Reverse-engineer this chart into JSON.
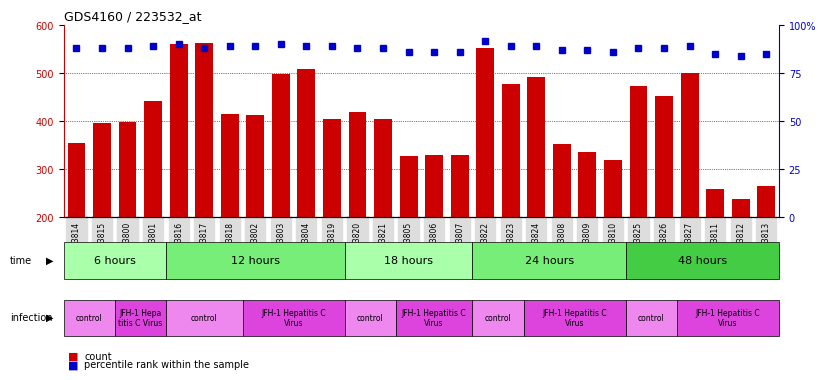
{
  "title": "GDS4160 / 223532_at",
  "samples": [
    "GSM523814",
    "GSM523815",
    "GSM523800",
    "GSM523801",
    "GSM523816",
    "GSM523817",
    "GSM523818",
    "GSM523802",
    "GSM523803",
    "GSM523804",
    "GSM523819",
    "GSM523820",
    "GSM523821",
    "GSM523805",
    "GSM523806",
    "GSM523807",
    "GSM523822",
    "GSM523823",
    "GSM523824",
    "GSM523808",
    "GSM523809",
    "GSM523810",
    "GSM523825",
    "GSM523826",
    "GSM523827",
    "GSM523811",
    "GSM523812",
    "GSM523813"
  ],
  "counts": [
    355,
    397,
    399,
    443,
    560,
    562,
    415,
    413,
    499,
    509,
    405,
    420,
    404,
    328,
    329,
    330,
    553,
    477,
    493,
    352,
    335,
    320,
    473,
    453,
    500,
    258,
    238,
    265
  ],
  "percentile_ranks": [
    88,
    88,
    88,
    89,
    90,
    88,
    89,
    89,
    90,
    89,
    89,
    88,
    88,
    86,
    86,
    86,
    92,
    89,
    89,
    87,
    87,
    86,
    88,
    88,
    89,
    85,
    84,
    85
  ],
  "bar_color": "#cc0000",
  "dot_color": "#0000cc",
  "ylim_left": [
    200,
    600
  ],
  "ylim_right": [
    0,
    100
  ],
  "yticks_left": [
    200,
    300,
    400,
    500,
    600
  ],
  "yticks_right": [
    0,
    25,
    50,
    75,
    100
  ],
  "grid_lines": [
    300,
    400,
    500
  ],
  "time_groups": [
    {
      "label": "6 hours",
      "start": 0,
      "end": 4,
      "color": "#aaffaa"
    },
    {
      "label": "12 hours",
      "start": 4,
      "end": 11,
      "color": "#77ee77"
    },
    {
      "label": "18 hours",
      "start": 11,
      "end": 16,
      "color": "#aaffaa"
    },
    {
      "label": "24 hours",
      "start": 16,
      "end": 22,
      "color": "#77ee77"
    },
    {
      "label": "48 hours",
      "start": 22,
      "end": 28,
      "color": "#44cc44"
    }
  ],
  "infection_groups": [
    {
      "label": "control",
      "start": 0,
      "end": 2,
      "color": "#ee88ee"
    },
    {
      "label": "JFH-1 Hepa\ntitis C Virus",
      "start": 2,
      "end": 4,
      "color": "#dd44dd"
    },
    {
      "label": "control",
      "start": 4,
      "end": 7,
      "color": "#ee88ee"
    },
    {
      "label": "JFH-1 Hepatitis C\nVirus",
      "start": 7,
      "end": 11,
      "color": "#dd44dd"
    },
    {
      "label": "control",
      "start": 11,
      "end": 13,
      "color": "#ee88ee"
    },
    {
      "label": "JFH-1 Hepatitis C\nVirus",
      "start": 13,
      "end": 16,
      "color": "#dd44dd"
    },
    {
      "label": "control",
      "start": 16,
      "end": 18,
      "color": "#ee88ee"
    },
    {
      "label": "JFH-1 Hepatitis C\nVirus",
      "start": 18,
      "end": 22,
      "color": "#dd44dd"
    },
    {
      "label": "control",
      "start": 22,
      "end": 24,
      "color": "#ee88ee"
    },
    {
      "label": "JFH-1 Hepatitis C\nVirus",
      "start": 24,
      "end": 28,
      "color": "#dd44dd"
    }
  ],
  "plot_bg": "#ffffff",
  "xticklabel_bg": "#dddddd"
}
